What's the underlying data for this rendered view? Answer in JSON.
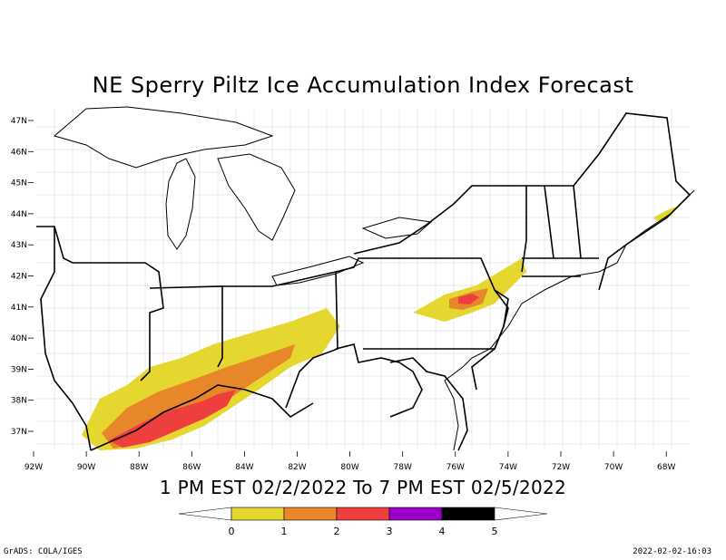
{
  "title": "NE Sperry Piltz Ice Accumulation Index Forecast",
  "subtitle": "1 PM EST 02/2/2022 To 7 PM EST 02/5/2022",
  "footer": {
    "left": "GrADS: COLA/IGES",
    "right": "2022-02-02-16:03"
  },
  "lat_labels": [
    "47N",
    "46N",
    "45N",
    "44N",
    "43N",
    "42N",
    "41N",
    "40N",
    "39N",
    "38N",
    "37N"
  ],
  "lon_labels": [
    "92W",
    "90W",
    "88W",
    "86W",
    "84W",
    "82W",
    "80W",
    "78W",
    "76W",
    "74W",
    "72W",
    "70W",
    "68W"
  ],
  "legend": {
    "labels": [
      "0",
      "1",
      "2",
      "3",
      "4",
      "5"
    ],
    "colors": [
      "#e6d630",
      "#e8862a",
      "#ee3e3e",
      "#9a00c8",
      "#000000"
    ]
  },
  "colors": {
    "land": "#ffffff",
    "state_border": "#000000",
    "county_border": "#888888"
  }
}
